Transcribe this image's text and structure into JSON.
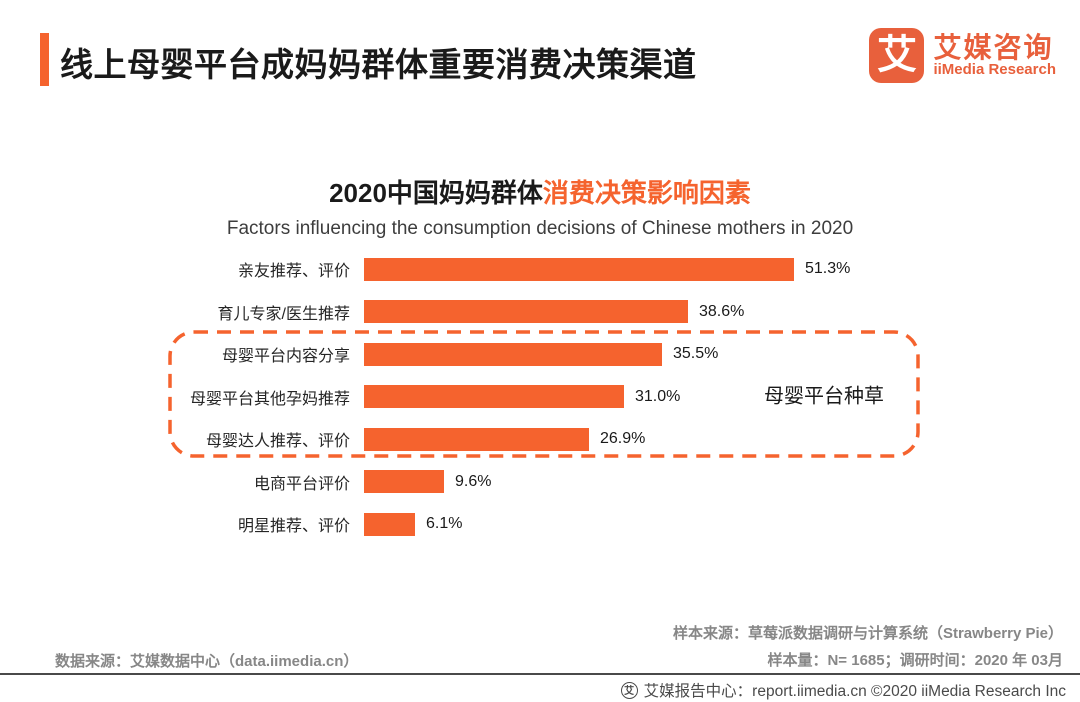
{
  "page": {
    "header": {
      "title": "线上母婴平台成妈妈群体重要消费决策渠道"
    },
    "logo": {
      "mark": "艾",
      "name_cn": "艾媒咨询",
      "name_en": "iiMedia Research"
    },
    "chart": {
      "title_black": "2020中国妈妈群体",
      "title_orange": "消费决策影响因素",
      "subtitle_en": "Factors influencing the consumption decisions of Chinese mothers in 2020",
      "annotation": "母婴平台种草"
    },
    "footnotes": {
      "data_source": "数据来源：艾媒数据中心（data.iimedia.cn）",
      "sample_source": "样本来源：草莓派数据调研与计算系统（Strawberry  Pie）",
      "sample_meta": "样本量：N= 1685；调研时间：2020 年 03月"
    },
    "footer": {
      "icon": "艾",
      "text": "艾媒报告中心：report.iimedia.cn  ©2020  iiMedia Research Inc"
    }
  },
  "colors": {
    "accent_orange": "#F5632E",
    "logo_orange": "#E8603C",
    "title_black": "#1a1a1a",
    "footnote_gray": "#878787",
    "footer_gray": "#4a4a4a"
  },
  "chart_data": {
    "type": "bar",
    "orientation": "horizontal",
    "title": "2020中国妈妈群体消费决策影响因素",
    "subtitle": "Factors influencing the consumption decisions of Chinese mothers in 2020",
    "categories": [
      "亲友推荐、评价",
      "育儿专家/医生推荐",
      "母婴平台内容分享",
      "母婴平台其他孕妈推荐",
      "母婴达人推荐、评价",
      "电商平台评价",
      "明星推荐、评价"
    ],
    "values": [
      51.3,
      38.6,
      35.5,
      31.0,
      26.9,
      9.6,
      6.1
    ],
    "value_labels": [
      "51.3%",
      "38.6%",
      "35.5%",
      "31.0%",
      "26.9%",
      "9.6%",
      "6.1%"
    ],
    "xlim": [
      0,
      51.3
    ],
    "grid": false,
    "legend": false,
    "bar_color": "#F5632E",
    "highlight_group": {
      "label": "母婴平台种草",
      "indices": [
        2,
        3,
        4
      ]
    }
  }
}
